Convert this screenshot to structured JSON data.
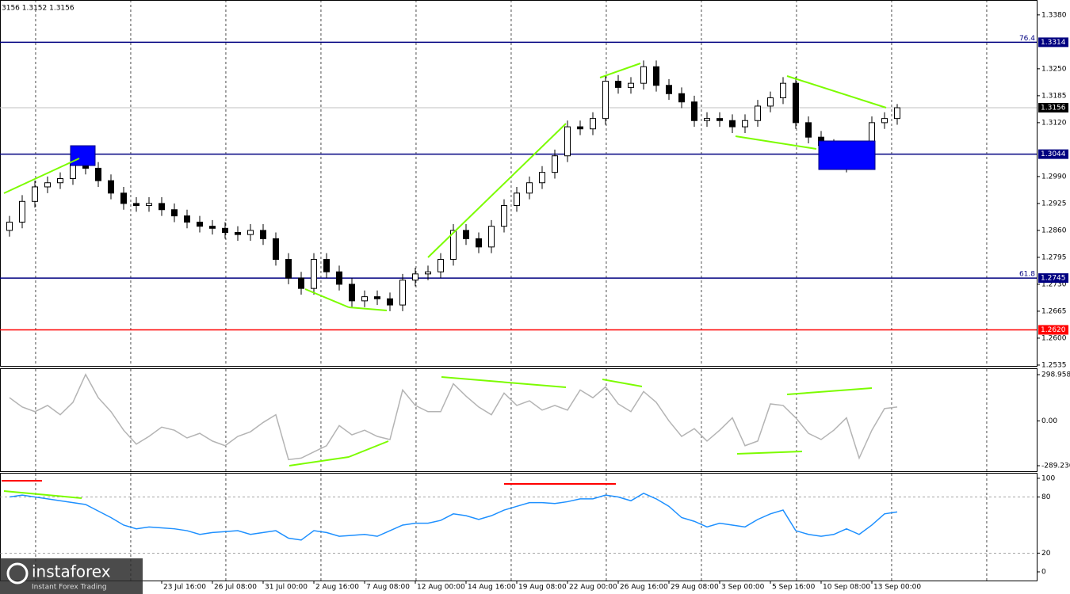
{
  "header_text": "3156 1.3152 1.3156",
  "watermark": {
    "brand": "instaforex",
    "tagline": "Instant Forex Trading"
  },
  "chart_data": [
    {
      "type": "candlestick",
      "color": "#000000",
      "up_color": "#ffffff",
      "x": [
        0,
        1,
        2,
        3,
        4,
        5,
        6,
        7,
        8,
        9,
        10,
        11,
        12,
        13,
        14,
        15,
        16,
        17,
        18,
        19,
        20,
        21,
        22,
        23,
        24,
        25,
        26,
        27,
        28,
        29,
        30,
        31,
        32,
        33,
        34,
        35,
        36,
        37,
        38,
        39,
        40,
        41,
        42,
        43,
        44,
        45,
        46,
        47,
        48,
        49,
        50,
        51,
        52,
        53,
        54,
        55,
        56,
        57,
        58,
        59,
        60,
        61,
        62,
        63,
        64,
        65,
        66,
        67,
        68,
        69,
        70
      ],
      "open": [
        1.286,
        1.288,
        1.293,
        1.2965,
        1.2975,
        1.2985,
        1.302,
        1.301,
        1.298,
        1.295,
        1.2925,
        1.292,
        1.2925,
        1.291,
        1.2895,
        1.288,
        1.287,
        1.2865,
        1.2855,
        1.285,
        1.286,
        1.284,
        1.279,
        1.2745,
        1.272,
        1.279,
        1.276,
        1.273,
        1.269,
        1.27,
        1.2695,
        1.268,
        1.274,
        1.2755,
        1.276,
        1.279,
        1.286,
        1.284,
        1.282,
        1.287,
        1.292,
        1.295,
        1.2975,
        1.3,
        1.304,
        1.311,
        1.3105,
        1.313,
        1.322,
        1.3205,
        1.3215,
        1.3255,
        1.321,
        1.319,
        1.317,
        1.3125,
        1.313,
        1.3125,
        1.311,
        1.3125,
        1.316,
        1.318,
        1.3215,
        1.312,
        1.3085,
        1.3065,
        1.305,
        1.303,
        1.305,
        1.312,
        1.313
      ],
      "high": [
        1.2895,
        1.2945,
        1.298,
        1.299,
        1.3,
        1.3045,
        1.3035,
        1.3025,
        1.2995,
        1.2965,
        1.294,
        1.294,
        1.294,
        1.2925,
        1.291,
        1.2895,
        1.2885,
        1.288,
        1.287,
        1.2875,
        1.2875,
        1.2855,
        1.2805,
        1.276,
        1.2805,
        1.2805,
        1.2775,
        1.2745,
        1.2715,
        1.2715,
        1.271,
        1.2755,
        1.277,
        1.2775,
        1.2805,
        1.2875,
        1.2875,
        1.2855,
        1.2885,
        1.2935,
        1.2965,
        1.299,
        1.3015,
        1.3055,
        1.3125,
        1.3125,
        1.3145,
        1.3235,
        1.3235,
        1.323,
        1.327,
        1.327,
        1.3225,
        1.3205,
        1.3185,
        1.3145,
        1.3145,
        1.314,
        1.314,
        1.3175,
        1.3195,
        1.323,
        1.323,
        1.3135,
        1.31,
        1.308,
        1.3065,
        1.3065,
        1.3135,
        1.3145,
        1.3165
      ],
      "low": [
        1.2845,
        1.2865,
        1.2915,
        1.295,
        1.296,
        1.297,
        1.2995,
        1.2965,
        1.2935,
        1.291,
        1.2905,
        1.2905,
        1.2895,
        1.288,
        1.2865,
        1.2855,
        1.285,
        1.284,
        1.2835,
        1.2835,
        1.2825,
        1.2775,
        1.273,
        1.2705,
        1.2705,
        1.2745,
        1.2715,
        1.2675,
        1.2675,
        1.268,
        1.2665,
        1.2665,
        1.2725,
        1.274,
        1.2745,
        1.2775,
        1.2825,
        1.2805,
        1.2805,
        1.2855,
        1.2905,
        1.2935,
        1.296,
        1.2985,
        1.3025,
        1.309,
        1.309,
        1.3115,
        1.319,
        1.319,
        1.32,
        1.3195,
        1.3175,
        1.3155,
        1.311,
        1.311,
        1.311,
        1.3095,
        1.3095,
        1.311,
        1.3145,
        1.3165,
        1.3105,
        1.307,
        1.305,
        1.3035,
        1.3,
        1.3015,
        1.3035,
        1.3105,
        1.3115
      ],
      "close": [
        1.288,
        1.293,
        1.2965,
        1.2975,
        1.2985,
        1.302,
        1.301,
        1.298,
        1.295,
        1.2925,
        1.292,
        1.2925,
        1.291,
        1.2895,
        1.288,
        1.287,
        1.2865,
        1.2855,
        1.285,
        1.286,
        1.284,
        1.279,
        1.2745,
        1.272,
        1.279,
        1.276,
        1.273,
        1.269,
        1.27,
        1.2695,
        1.268,
        1.274,
        1.2755,
        1.276,
        1.279,
        1.286,
        1.284,
        1.282,
        1.287,
        1.292,
        1.295,
        1.2975,
        1.3,
        1.304,
        1.311,
        1.3105,
        1.313,
        1.322,
        1.3205,
        1.3215,
        1.3255,
        1.321,
        1.319,
        1.317,
        1.3125,
        1.313,
        1.3125,
        1.311,
        1.3125,
        1.316,
        1.318,
        1.3215,
        1.312,
        1.3085,
        1.3065,
        1.305,
        1.303,
        1.305,
        1.312,
        1.313,
        1.3156
      ],
      "xlim": [
        -0.75,
        81
      ],
      "ylim": [
        1.2533,
        1.3416
      ],
      "yticks": [
        {
          "value": 1.338,
          "label": "1.3380"
        },
        {
          "value": 1.325,
          "label": "1.3250"
        },
        {
          "value": 1.3185,
          "label": "1.3185"
        },
        {
          "value": 1.312,
          "label": "1.3120"
        },
        {
          "value": 1.299,
          "label": "1.2990"
        },
        {
          "value": 1.2925,
          "label": "1.2925"
        },
        {
          "value": 1.286,
          "label": "1.2860"
        },
        {
          "value": 1.2795,
          "label": "1.2795"
        },
        {
          "value": 1.273,
          "label": "1.2730"
        },
        {
          "value": 1.2665,
          "label": "1.2665"
        },
        {
          "value": 1.26,
          "label": "1.2600"
        },
        {
          "value": 1.2535,
          "label": "1.2535"
        }
      ],
      "xticks": [
        {
          "value": 12,
          "label": "23 Jul 16:00"
        },
        {
          "value": 16,
          "label": "26 Jul 08:00"
        },
        {
          "value": 20,
          "label": "31 Jul 00:00"
        },
        {
          "value": 24,
          "label": "2 Aug 16:00"
        },
        {
          "value": 28,
          "label": "7 Aug 08:00"
        },
        {
          "value": 32,
          "label": "12 Aug 00:00"
        },
        {
          "value": 36,
          "label": "14 Aug 16:00"
        },
        {
          "value": 40,
          "label": "19 Aug 08:00"
        },
        {
          "value": 44,
          "label": "22 Aug 00:00"
        },
        {
          "value": 48,
          "label": "26 Aug 16:00"
        },
        {
          "value": 52,
          "label": "29 Aug 08:00"
        },
        {
          "value": 56,
          "label": "3 Sep 00:00"
        },
        {
          "value": 60,
          "label": "5 Sep 16:00"
        },
        {
          "value": 64,
          "label": "10 Sep 08:00"
        },
        {
          "value": 68,
          "label": "13 Sep 00:00"
        }
      ],
      "xgrid": [
        2.06,
        9.56,
        17.06,
        24.56,
        32.06,
        39.56,
        47.06,
        54.56,
        62.06,
        69.56,
        77.06
      ],
      "levels": [
        {
          "value": 1.3314,
          "label": "1.3314",
          "tag": "76.4",
          "color": "#000080",
          "label_color": "#000080"
        },
        {
          "value": 1.3156,
          "label": "1.3156",
          "color": "#c0c0c0",
          "label_color": "#000000"
        },
        {
          "value": 1.3044,
          "label": "1.3044",
          "color": "#000080",
          "label_color": "#000080"
        },
        {
          "value": 1.2745,
          "label": "1.2745",
          "tag": "61.8",
          "color": "#000080",
          "label_color": "#000080"
        },
        {
          "value": 1.262,
          "label": "1.2620",
          "color": "#ff0000",
          "label_color": "#ff0000"
        }
      ]
    },
    {
      "type": "line",
      "color": "#b4b4b4",
      "ylim": [
        -325,
        335
      ],
      "yticks": [
        {
          "value": 298.9583,
          "label": "298.9583"
        },
        {
          "value": 0,
          "label": "0.00"
        },
        -289.236
      ],
      "values": [
        150,
        90,
        60,
        100,
        40,
        120,
        300,
        150,
        60,
        -60,
        -150,
        -100,
        -40,
        -60,
        -110,
        -80,
        -130,
        -160,
        -100,
        -70,
        -10,
        40,
        -250,
        -240,
        -200,
        -160,
        -30,
        -90,
        -60,
        -100,
        -120,
        200,
        100,
        60,
        60,
        240,
        160,
        90,
        40,
        180,
        100,
        130,
        70,
        100,
        70,
        200,
        150,
        220,
        110,
        60,
        190,
        120,
        0,
        -100,
        -50,
        -130,
        -60,
        20,
        -160,
        -130,
        110,
        100,
        20,
        -80,
        -120,
        -60,
        20,
        -240,
        -60,
        80,
        90
      ]
    },
    {
      "type": "line",
      "color": "#1e90ff",
      "ylim": [
        -9.3,
        105
      ],
      "yticks": [
        100,
        80,
        20,
        0
      ],
      "levels": [
        80,
        20
      ],
      "values": [
        80,
        82,
        80,
        78,
        76,
        74,
        72,
        65,
        58,
        50,
        46,
        48,
        47,
        46,
        44,
        40,
        42,
        43,
        44,
        40,
        42,
        44,
        36,
        34,
        44,
        42,
        38,
        39,
        40,
        38,
        44,
        50,
        52,
        52,
        55,
        62,
        60,
        56,
        60,
        66,
        70,
        74,
        74,
        73,
        75,
        78,
        78,
        82,
        80,
        76,
        84,
        78,
        70,
        58,
        54,
        48,
        52,
        50,
        48,
        56,
        62,
        66,
        44,
        40,
        38,
        40,
        46,
        40,
        50,
        62,
        64
      ]
    }
  ]
}
